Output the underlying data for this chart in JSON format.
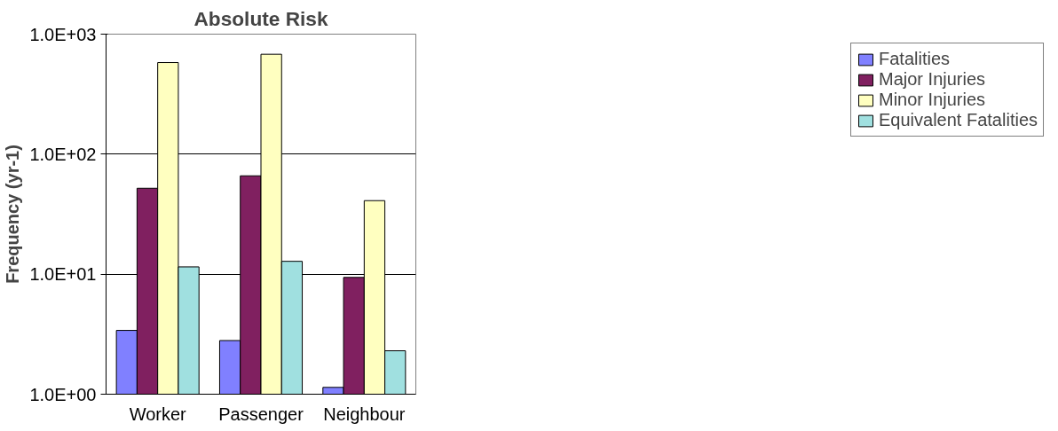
{
  "chart_data": {
    "type": "bar",
    "title": "Absolute Risk",
    "ylabel": "Frequency (yr-1)",
    "categories": [
      "Worker",
      "Passenger",
      "Neighbour"
    ],
    "series": [
      {
        "name": "Fatalities",
        "color": "#8080ff",
        "values": [
          3.4,
          2.8,
          1.14
        ]
      },
      {
        "name": "Major Injuries",
        "color": "#802060",
        "values": [
          52,
          66,
          9.4
        ]
      },
      {
        "name": "Minor Injuries",
        "color": "#ffffc0",
        "values": [
          580,
          680,
          41
        ]
      },
      {
        "name": "Equivalent Fatalities",
        "color": "#a0e0e0",
        "values": [
          11.5,
          12.8,
          2.3
        ]
      }
    ],
    "log": true,
    "ylim": [
      1,
      1000
    ],
    "yticks": [
      {
        "value": 1,
        "label": "1.0E+00"
      },
      {
        "value": 10,
        "label": "1.0E+01"
      },
      {
        "value": 100,
        "label": "1.0E+02"
      },
      {
        "value": 1000,
        "label": "1.0E+03"
      }
    ],
    "grid": "y",
    "legend": "right"
  }
}
